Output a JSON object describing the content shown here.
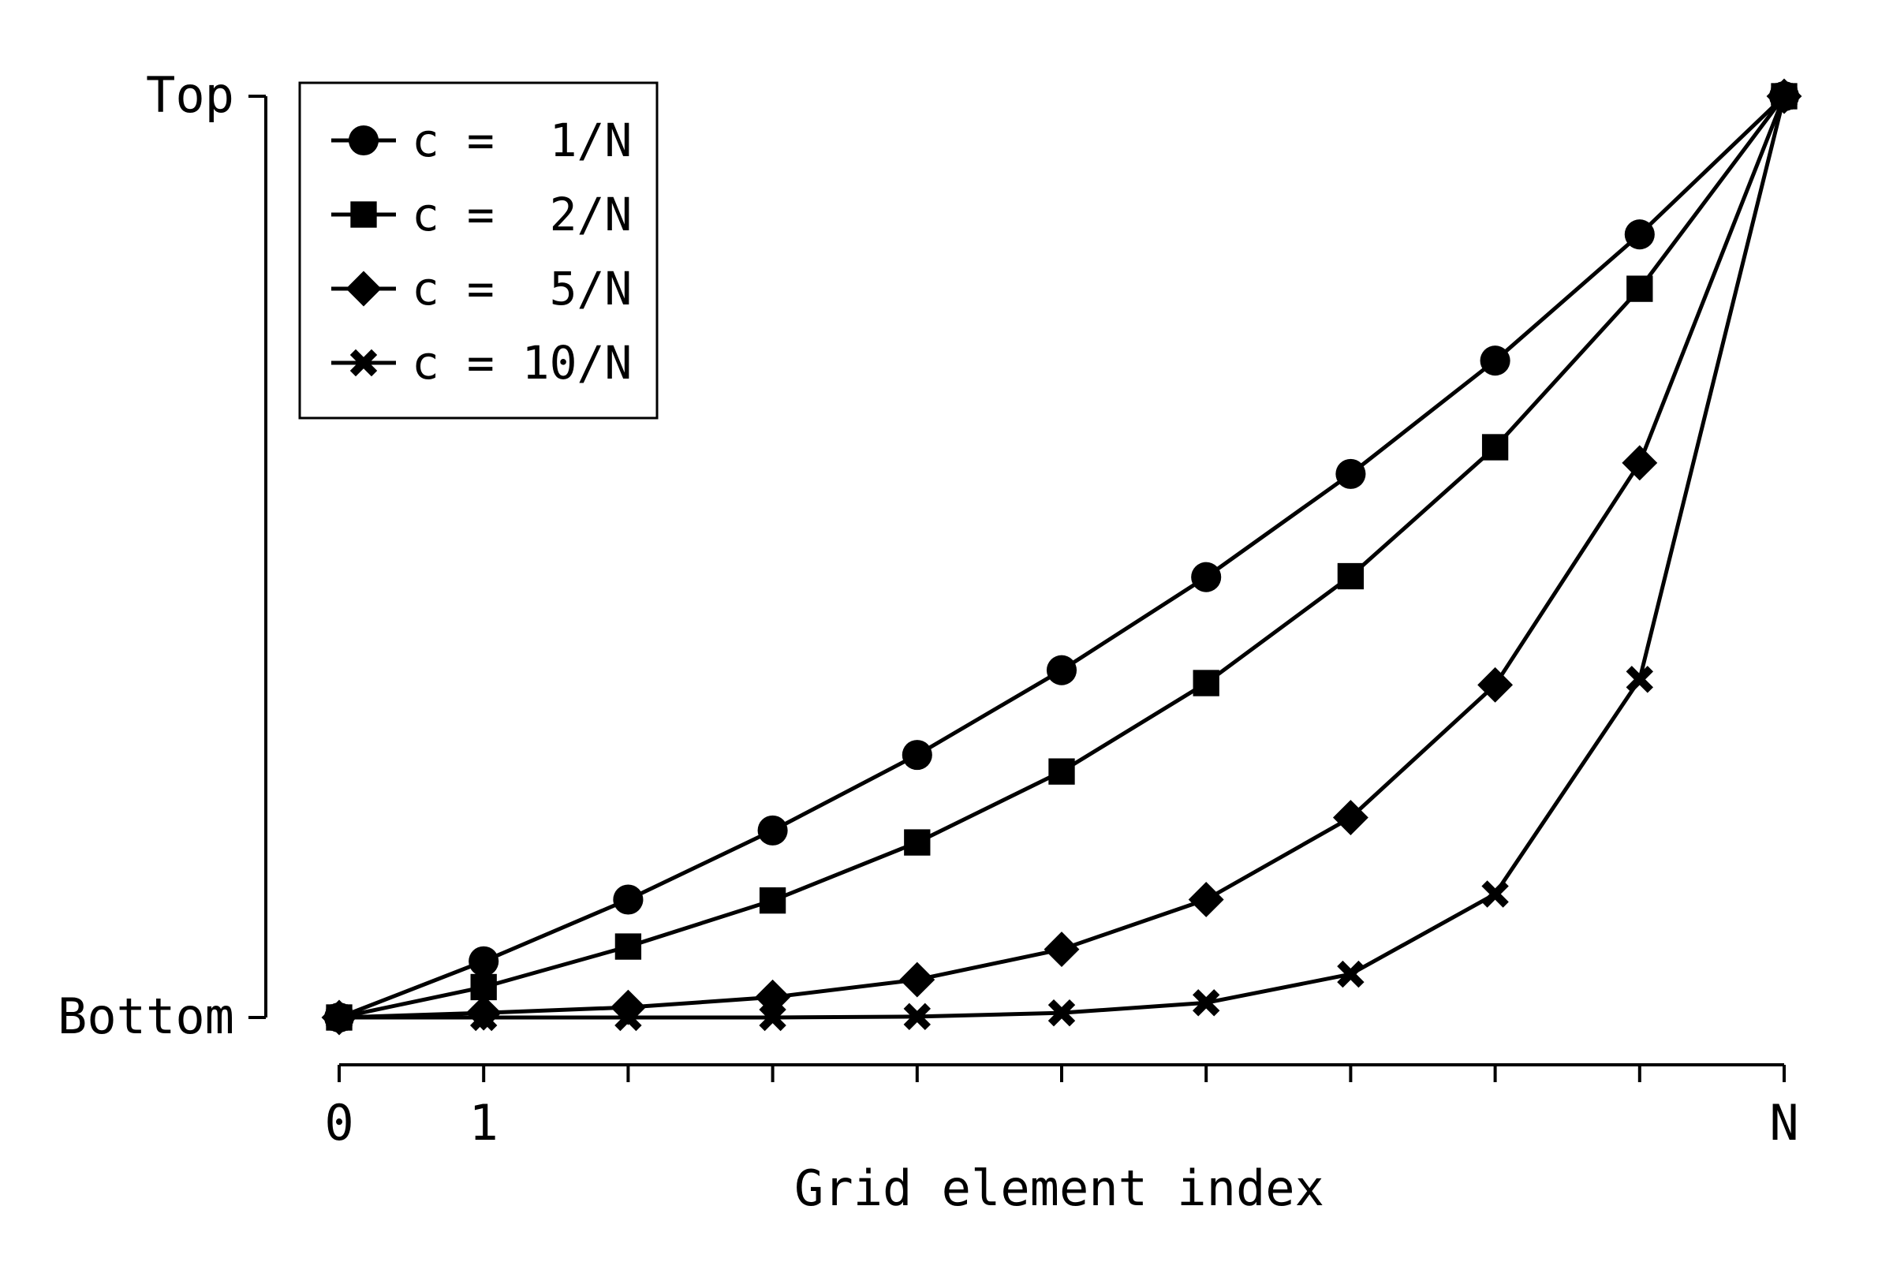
{
  "chart_data": {
    "type": "line",
    "title": "",
    "xlabel": "Grid element index",
    "ylabel": "",
    "x": [
      0,
      1,
      2,
      3,
      4,
      5,
      6,
      7,
      8,
      9,
      10
    ],
    "xlim": [
      0,
      10
    ],
    "ylim": [
      0,
      1
    ],
    "x_tick_labels": [
      {
        "x": 0,
        "label": "0"
      },
      {
        "x": 1,
        "label": "1"
      },
      {
        "x": 10,
        "label": "N"
      }
    ],
    "y_ticks": [
      {
        "y": 0,
        "label": "Bottom"
      },
      {
        "y": 1,
        "label": "Top"
      }
    ],
    "grid": false,
    "legend_position": "top-left",
    "series": [
      {
        "name": "c =  1/N",
        "marker": "circle",
        "values": [
          0,
          0.061,
          0.128,
          0.203,
          0.285,
          0.377,
          0.478,
          0.59,
          0.713,
          0.85,
          1.0
        ]
      },
      {
        "name": "c =  2/N",
        "marker": "square",
        "values": [
          0,
          0.033,
          0.077,
          0.127,
          0.19,
          0.267,
          0.363,
          0.479,
          0.619,
          0.791,
          1.0
        ]
      },
      {
        "name": "c =  5/N",
        "marker": "diamond",
        "values": [
          0,
          0.005,
          0.011,
          0.022,
          0.041,
          0.074,
          0.128,
          0.217,
          0.361,
          0.602,
          1.0
        ]
      },
      {
        "name": "c = 10/N",
        "marker": "x",
        "values": [
          0,
          0.0,
          0.0,
          0.0,
          0.001,
          0.005,
          0.016,
          0.047,
          0.134,
          0.367,
          1.0
        ]
      }
    ]
  }
}
